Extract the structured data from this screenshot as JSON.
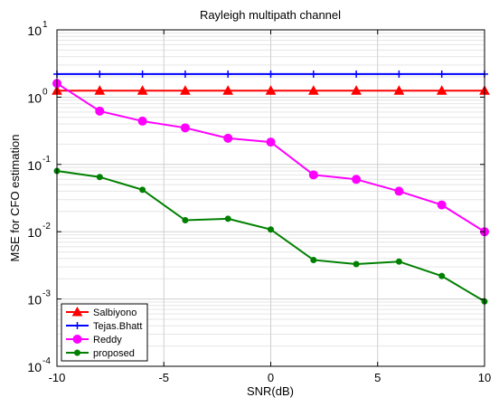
{
  "chart_data": {
    "type": "line",
    "title": "Rayleigh multipath channel",
    "xlabel": "SNR(dB)",
    "ylabel": "MSE for CFO estimation",
    "xlim": [
      -10,
      10
    ],
    "ylim": [
      0.0001,
      10
    ],
    "yscale": "log",
    "grid": "minor-log-y",
    "legend_position": "bottom-left",
    "x_ticks": [
      "-10",
      "-5",
      "0",
      "5",
      "10"
    ],
    "y_ticks": [
      {
        "base": "10",
        "exp": "-4"
      },
      {
        "base": "10",
        "exp": "-3"
      },
      {
        "base": "10",
        "exp": "-2"
      },
      {
        "base": "10",
        "exp": "-1"
      },
      {
        "base": "10",
        "exp": "0"
      },
      {
        "base": "10",
        "exp": "1"
      }
    ],
    "x": [
      -10,
      -8,
      -6,
      -4,
      -2,
      0,
      2,
      4,
      6,
      8,
      10
    ],
    "series": [
      {
        "name": "Salbiyono",
        "color": "#ff0000",
        "marker": "triangle",
        "values": [
          1.25,
          1.25,
          1.25,
          1.25,
          1.25,
          1.25,
          1.25,
          1.25,
          1.25,
          1.25,
          1.25
        ]
      },
      {
        "name": "Tejas.Bhatt",
        "color": "#0000ff",
        "marker": "plus",
        "values": [
          2.2,
          2.2,
          2.2,
          2.2,
          2.2,
          2.2,
          2.2,
          2.2,
          2.2,
          2.2,
          2.2
        ]
      },
      {
        "name": "Reddy",
        "color": "#ff00ff",
        "marker": "circle",
        "values": [
          1.6,
          0.62,
          0.44,
          0.35,
          0.245,
          0.215,
          0.07,
          0.06,
          0.04,
          0.025,
          0.01
        ]
      },
      {
        "name": "proposed",
        "color": "#008000",
        "marker": "dot",
        "values": [
          0.08,
          0.065,
          0.042,
          0.0148,
          0.0156,
          0.0108,
          0.0038,
          0.0033,
          0.0036,
          0.0022,
          0.00092
        ]
      }
    ]
  }
}
